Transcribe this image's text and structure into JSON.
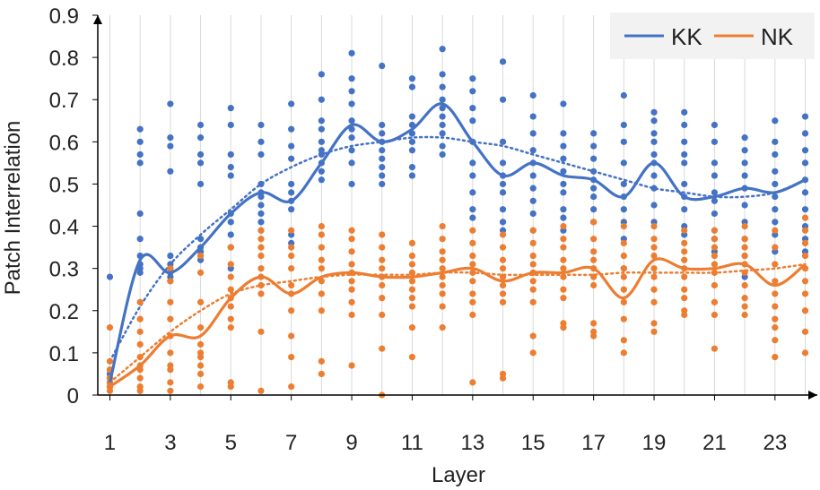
{
  "chart_data": {
    "type": "scatter",
    "title": "",
    "xlabel": "Layer",
    "ylabel": "Patch Interrelation",
    "xlim": [
      0.6,
      24.4
    ],
    "ylim": [
      0,
      0.9
    ],
    "x_ticks": [
      1,
      3,
      5,
      7,
      9,
      11,
      13,
      15,
      17,
      19,
      21,
      23
    ],
    "y_ticks": [
      0,
      0.1,
      0.2,
      0.3,
      0.4,
      0.5,
      0.6,
      0.7,
      0.8,
      0.9
    ],
    "x_tick_labels": [
      "1",
      "3",
      "5",
      "7",
      "9",
      "11",
      "13",
      "15",
      "17",
      "19",
      "21",
      "23"
    ],
    "y_tick_labels": [
      "0",
      "0.1",
      "0.2",
      "0.3",
      "0.4",
      "0.5",
      "0.6",
      "0.7",
      "0.8",
      "0.9"
    ],
    "grid": "vertical",
    "legend": {
      "position": "top-right",
      "entries": [
        "KK",
        "NK"
      ]
    },
    "series": [
      {
        "name": "KK",
        "color": "#4472c4",
        "mean": [
          0.03,
          0.32,
          0.29,
          0.35,
          0.43,
          0.48,
          0.46,
          0.55,
          0.64,
          0.6,
          0.63,
          0.69,
          0.6,
          0.52,
          0.55,
          0.52,
          0.51,
          0.47,
          0.55,
          0.47,
          0.47,
          0.49,
          0.48,
          0.51
        ],
        "trend": [
          0.08,
          0.21,
          0.31,
          0.38,
          0.44,
          0.5,
          0.54,
          0.57,
          0.59,
          0.6,
          0.61,
          0.61,
          0.6,
          0.59,
          0.57,
          0.55,
          0.53,
          0.51,
          0.49,
          0.48,
          0.47,
          0.47,
          0.48,
          0.51
        ],
        "points": [
          [
            1,
            [
              0.28,
              0.06,
              0.05,
              0.04,
              0.03,
              0.03,
              0.02,
              0.02
            ]
          ],
          [
            2,
            [
              0.63,
              0.6,
              0.57,
              0.55,
              0.43,
              0.37,
              0.33,
              0.31,
              0.3,
              0.29
            ]
          ],
          [
            3,
            [
              0.69,
              0.61,
              0.59,
              0.53,
              0.33,
              0.31,
              0.3,
              0.29,
              0.28,
              0.27
            ]
          ],
          [
            4,
            [
              0.64,
              0.61,
              0.57,
              0.55,
              0.5,
              0.37,
              0.35,
              0.34,
              0.33,
              0.32
            ]
          ],
          [
            5,
            [
              0.68,
              0.64,
              0.57,
              0.54,
              0.52,
              0.43,
              0.41,
              0.38,
              0.35,
              0.3
            ]
          ],
          [
            6,
            [
              0.64,
              0.6,
              0.57,
              0.5,
              0.48,
              0.47,
              0.45,
              0.43,
              0.41,
              0.39
            ]
          ],
          [
            7,
            [
              0.69,
              0.63,
              0.59,
              0.56,
              0.5,
              0.48,
              0.46,
              0.44,
              0.38,
              0.36
            ]
          ],
          [
            8,
            [
              0.76,
              0.7,
              0.65,
              0.63,
              0.6,
              0.58,
              0.57,
              0.55,
              0.53,
              0.51
            ]
          ],
          [
            9,
            [
              0.81,
              0.75,
              0.72,
              0.69,
              0.65,
              0.63,
              0.61,
              0.58,
              0.55,
              0.5
            ]
          ],
          [
            10,
            [
              0.78,
              0.64,
              0.62,
              0.6,
              0.58,
              0.56,
              0.54,
              0.52,
              0.5
            ]
          ],
          [
            11,
            [
              0.75,
              0.73,
              0.66,
              0.64,
              0.62,
              0.6,
              0.58,
              0.54,
              0.52
            ]
          ],
          [
            12,
            [
              0.82,
              0.76,
              0.73,
              0.7,
              0.68,
              0.66,
              0.64,
              0.62,
              0.59,
              0.57
            ]
          ],
          [
            13,
            [
              0.75,
              0.72,
              0.68,
              0.65,
              0.6,
              0.55,
              0.52,
              0.48,
              0.44,
              0.42
            ]
          ],
          [
            14,
            [
              0.79,
              0.7,
              0.6,
              0.55,
              0.52,
              0.5,
              0.48,
              0.44,
              0.41,
              0.39
            ]
          ],
          [
            15,
            [
              0.71,
              0.66,
              0.62,
              0.58,
              0.55,
              0.52,
              0.49,
              0.46,
              0.43,
              0.39
            ]
          ],
          [
            16,
            [
              0.69,
              0.62,
              0.59,
              0.56,
              0.53,
              0.5,
              0.48,
              0.44,
              0.42,
              0.39
            ]
          ],
          [
            17,
            [
              0.62,
              0.59,
              0.56,
              0.53,
              0.51,
              0.49,
              0.47,
              0.44,
              0.41
            ]
          ],
          [
            18,
            [
              0.71,
              0.64,
              0.6,
              0.55,
              0.5,
              0.47,
              0.44,
              0.41,
              0.37,
              0.3
            ]
          ],
          [
            19,
            [
              0.67,
              0.65,
              0.62,
              0.6,
              0.57,
              0.55,
              0.52,
              0.49,
              0.45,
              0.41
            ]
          ],
          [
            20,
            [
              0.67,
              0.64,
              0.6,
              0.57,
              0.55,
              0.5,
              0.47,
              0.44,
              0.4,
              0.38
            ]
          ],
          [
            21,
            [
              0.64,
              0.6,
              0.55,
              0.52,
              0.48,
              0.46,
              0.43,
              0.39,
              0.37,
              0.34
            ]
          ],
          [
            22,
            [
              0.61,
              0.58,
              0.55,
              0.52,
              0.49,
              0.45,
              0.41,
              0.37,
              0.33,
              0.28
            ]
          ],
          [
            23,
            [
              0.65,
              0.6,
              0.57,
              0.53,
              0.5,
              0.47,
              0.44,
              0.41,
              0.38,
              0.34
            ]
          ],
          [
            24,
            [
              0.66,
              0.62,
              0.58,
              0.55,
              0.51,
              0.48,
              0.44,
              0.4,
              0.37,
              0.34
            ]
          ]
        ]
      },
      {
        "name": "NK",
        "color": "#ed7d31",
        "mean": [
          0.02,
          0.07,
          0.14,
          0.14,
          0.23,
          0.28,
          0.24,
          0.28,
          0.29,
          0.28,
          0.28,
          0.29,
          0.3,
          0.27,
          0.29,
          0.29,
          0.3,
          0.23,
          0.32,
          0.3,
          0.3,
          0.31,
          0.26,
          0.31
        ],
        "trend": [
          0.03,
          0.09,
          0.15,
          0.2,
          0.24,
          0.26,
          0.27,
          0.28,
          0.285,
          0.285,
          0.285,
          0.29,
          0.29,
          0.285,
          0.285,
          0.285,
          0.285,
          0.29,
          0.29,
          0.29,
          0.29,
          0.295,
          0.3,
          0.31
        ],
        "points": [
          [
            1,
            [
              0.16,
              0.08,
              0.06,
              0.04,
              0.03,
              0.02,
              0.01
            ]
          ],
          [
            2,
            [
              0.22,
              0.18,
              0.15,
              0.12,
              0.09,
              0.07,
              0.06,
              0.04,
              0.02,
              0.01
            ]
          ],
          [
            3,
            [
              0.3,
              0.27,
              0.22,
              0.18,
              0.14,
              0.1,
              0.07,
              0.06,
              0.03,
              0.01
            ]
          ],
          [
            4,
            [
              0.33,
              0.29,
              0.22,
              0.16,
              0.12,
              0.1,
              0.09,
              0.07,
              0.05,
              0.02
            ]
          ],
          [
            5,
            [
              0.35,
              0.31,
              0.28,
              0.25,
              0.23,
              0.21,
              0.18,
              0.16,
              0.03,
              0.02
            ]
          ],
          [
            6,
            [
              0.39,
              0.37,
              0.35,
              0.33,
              0.3,
              0.28,
              0.26,
              0.24,
              0.15,
              0.01
            ]
          ],
          [
            7,
            [
              0.39,
              0.35,
              0.33,
              0.3,
              0.26,
              0.24,
              0.2,
              0.14,
              0.09,
              0.02
            ]
          ],
          [
            8,
            [
              0.4,
              0.38,
              0.35,
              0.32,
              0.3,
              0.27,
              0.24,
              0.2,
              0.08,
              0.05
            ]
          ],
          [
            9,
            [
              0.39,
              0.37,
              0.34,
              0.31,
              0.29,
              0.27,
              0.25,
              0.22,
              0.19,
              0.07
            ]
          ],
          [
            10,
            [
              0.38,
              0.35,
              0.32,
              0.3,
              0.28,
              0.26,
              0.23,
              0.19,
              0.11,
              0.0
            ]
          ],
          [
            11,
            [
              0.36,
              0.33,
              0.31,
              0.29,
              0.27,
              0.25,
              0.23,
              0.21,
              0.16,
              0.09
            ]
          ],
          [
            12,
            [
              0.4,
              0.37,
              0.34,
              0.32,
              0.3,
              0.28,
              0.26,
              0.24,
              0.21,
              0.16
            ]
          ],
          [
            13,
            [
              0.39,
              0.36,
              0.33,
              0.31,
              0.29,
              0.27,
              0.24,
              0.22,
              0.19,
              0.03
            ]
          ],
          [
            14,
            [
              0.38,
              0.35,
              0.32,
              0.3,
              0.28,
              0.26,
              0.24,
              0.22,
              0.05,
              0.04
            ]
          ],
          [
            15,
            [
              0.39,
              0.36,
              0.33,
              0.31,
              0.29,
              0.27,
              0.25,
              0.22,
              0.14,
              0.1
            ]
          ],
          [
            16,
            [
              0.4,
              0.37,
              0.35,
              0.32,
              0.3,
              0.28,
              0.25,
              0.23,
              0.17,
              0.16
            ]
          ],
          [
            17,
            [
              0.41,
              0.37,
              0.34,
              0.32,
              0.3,
              0.28,
              0.26,
              0.17,
              0.15,
              0.14
            ]
          ],
          [
            18,
            [
              0.4,
              0.36,
              0.33,
              0.3,
              0.28,
              0.25,
              0.22,
              0.18,
              0.13,
              0.1
            ]
          ],
          [
            19,
            [
              0.4,
              0.37,
              0.35,
              0.33,
              0.3,
              0.28,
              0.25,
              0.22,
              0.17,
              0.15
            ]
          ],
          [
            20,
            [
              0.39,
              0.36,
              0.34,
              0.32,
              0.3,
              0.28,
              0.25,
              0.23,
              0.2,
              0.19
            ]
          ],
          [
            21,
            [
              0.39,
              0.37,
              0.35,
              0.33,
              0.31,
              0.29,
              0.26,
              0.22,
              0.19,
              0.11
            ]
          ],
          [
            22,
            [
              0.4,
              0.37,
              0.35,
              0.33,
              0.31,
              0.29,
              0.26,
              0.23,
              0.21,
              0.19
            ]
          ],
          [
            23,
            [
              0.39,
              0.35,
              0.31,
              0.27,
              0.24,
              0.21,
              0.18,
              0.16,
              0.13,
              0.09
            ]
          ],
          [
            24,
            [
              0.42,
              0.39,
              0.36,
              0.33,
              0.3,
              0.27,
              0.24,
              0.2,
              0.15,
              0.1
            ]
          ]
        ]
      }
    ]
  }
}
